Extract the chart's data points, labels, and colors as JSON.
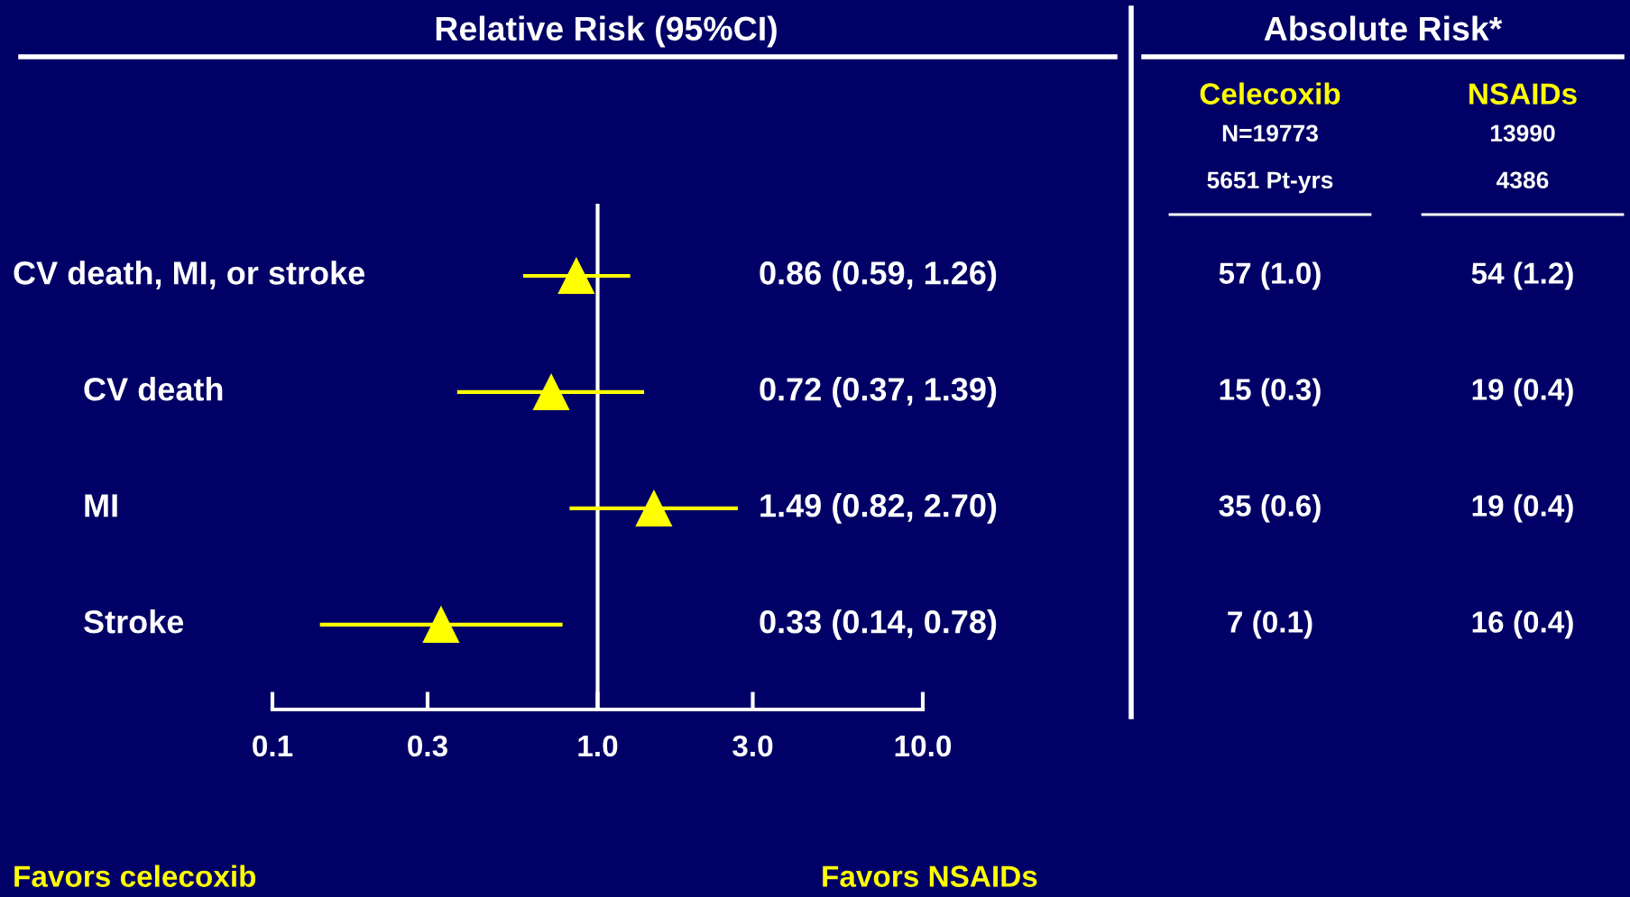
{
  "chart_data": [
    {
      "type": "scatter",
      "orientation": "horizontal",
      "title": "Relative Risk (95%CI)",
      "categories": [
        "CV death, MI, or stroke",
        "CV death",
        "MI",
        "Stroke"
      ],
      "values": [
        0.86,
        0.72,
        1.49,
        0.33
      ],
      "errors": [
        [
          0.59,
          1.26
        ],
        [
          0.37,
          1.39
        ],
        [
          0.82,
          2.7
        ],
        [
          0.14,
          0.78
        ]
      ],
      "color": "#ffff00",
      "marker": "triangle",
      "log": "x",
      "xlim": [
        0.1,
        10
      ],
      "xticks": [
        0.1,
        0.3,
        {
          "value": 1,
          "label": "1.0"
        },
        {
          "value": 3,
          "label": "3.0"
        },
        {
          "value": 10,
          "label": "10.0"
        }
      ],
      "ref_lines": [
        {
          "axis": "x",
          "value": 1,
          "color": "#ffffff"
        }
      ],
      "grid": false,
      "legend": false,
      "annotations": [
        "0.86 (0.59, 1.26)",
        "0.72 (0.37, 1.39)",
        "1.49 (0.82, 2.70)",
        "0.33 (0.14, 0.78)",
        "Favors celecoxib",
        "Favors NSAIDs"
      ]
    },
    {
      "type": "other",
      "title": "Absolute Risk*",
      "annotations": [
        "Celecoxib",
        "NSAIDs",
        "N=19773",
        "13990",
        "5651 Pt-yrs",
        "4386",
        "57 (1.0)",
        "54 (1.2)",
        "15 (0.3)",
        "19 (0.4)",
        "35 (0.6)",
        "19 (0.4)",
        "7 (0.1)",
        "16 (0.4)"
      ]
    }
  ]
}
